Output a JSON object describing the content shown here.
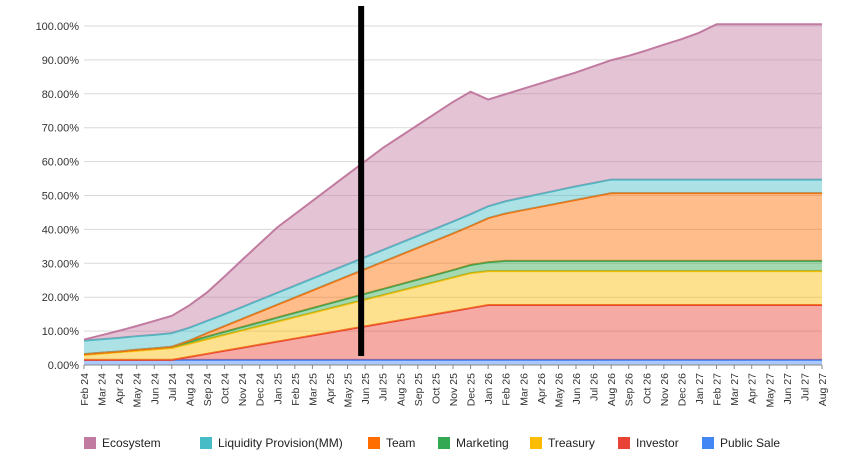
{
  "chart_data": {
    "type": "area",
    "stacked": true,
    "x": [
      "Feb 24",
      "Mar 24",
      "Apr 24",
      "May 24",
      "Jun 24",
      "Jul 24",
      "Aug 24",
      "Sep 24",
      "Oct 24",
      "Nov 24",
      "Dec 24",
      "Jan 25",
      "Feb 25",
      "Mar 25",
      "Apr 25",
      "May 25",
      "Jun 25",
      "Jul 25",
      "Aug 25",
      "Sep 25",
      "Oct 25",
      "Nov 25",
      "Dec 25",
      "Jan 26",
      "Feb 26",
      "Mar 26",
      "Apr 26",
      "May 26",
      "Jun 26",
      "Jul 26",
      "Aug 26",
      "Sep 26",
      "Oct 26",
      "Nov 26",
      "Dec 26",
      "Jan 27",
      "Feb 27",
      "Mar 27",
      "Apr 27",
      "May 27",
      "Jun 27",
      "Jul 27",
      "Aug 27"
    ],
    "ylim": [
      0,
      100
    ],
    "yticks": [
      "0.00%",
      "10.00%",
      "20.00%",
      "30.00%",
      "40.00%",
      "50.00%",
      "60.00%",
      "70.00%",
      "80.00%",
      "90.00%",
      "100.00%"
    ],
    "grid": true,
    "legend_position": "bottom",
    "marker_line": {
      "x": "Jun 25",
      "color": "#000000"
    },
    "series": [
      {
        "name": "Public Sale",
        "color": "#4285f4",
        "values": [
          1.5,
          1.5,
          1.5,
          1.5,
          1.5,
          1.5,
          1.5,
          1.5,
          1.5,
          1.5,
          1.5,
          1.5,
          1.5,
          1.5,
          1.5,
          1.5,
          1.5,
          1.5,
          1.5,
          1.5,
          1.5,
          1.5,
          1.5,
          1.5,
          1.5,
          1.5,
          1.5,
          1.5,
          1.5,
          1.5,
          1.5,
          1.5,
          1.5,
          1.5,
          1.5,
          1.5,
          1.5,
          1.5,
          1.5,
          1.5,
          1.5,
          1.5,
          1.5
        ]
      },
      {
        "name": "Investor",
        "color": "#e84335",
        "values": [
          0,
          0,
          0,
          0,
          0,
          0,
          0.9,
          1.8,
          2.7,
          3.6,
          4.5,
          5.4,
          6.3,
          7.2,
          8.1,
          9.0,
          9.9,
          10.8,
          11.7,
          12.6,
          13.5,
          14.4,
          15.3,
          16.2,
          16.2,
          16.2,
          16.2,
          16.2,
          16.2,
          16.2,
          16.2,
          16.2,
          16.2,
          16.2,
          16.2,
          16.2,
          16.2,
          16.2,
          16.2,
          16.2,
          16.2,
          16.2,
          16.2
        ]
      },
      {
        "name": "Treasury",
        "color": "#fbbc04",
        "values": [
          1.5,
          1.9,
          2.3,
          2.7,
          3.1,
          3.5,
          3.9,
          4.3,
          4.7,
          5.1,
          5.5,
          5.9,
          6.3,
          6.7,
          7.1,
          7.5,
          7.9,
          8.3,
          8.7,
          9.1,
          9.5,
          9.9,
          10.3,
          10.0,
          10.0,
          10.0,
          10.0,
          10.0,
          10.0,
          10.0,
          10.0,
          10.0,
          10.0,
          10.0,
          10.0,
          10.0,
          10.0,
          10.0,
          10.0,
          10.0,
          10.0,
          10.0,
          10.0
        ]
      },
      {
        "name": "Marketing",
        "color": "#34a853",
        "values": [
          0.2,
          0.2,
          0.2,
          0.3,
          0.3,
          0.4,
          0.6,
          0.8,
          0.9,
          1.0,
          1.1,
          1.2,
          1.3,
          1.4,
          1.5,
          1.6,
          1.7,
          1.8,
          1.9,
          2.0,
          2.1,
          2.2,
          2.4,
          2.6,
          3.0,
          3.0,
          3.0,
          3.0,
          3.0,
          3.0,
          3.0,
          3.0,
          3.0,
          3.0,
          3.0,
          3.0,
          3.0,
          3.0,
          3.0,
          3.0,
          3.0,
          3.0,
          3.0
        ]
      },
      {
        "name": "Team",
        "color": "#ff6d01",
        "values": [
          0,
          0,
          0,
          0,
          0,
          0,
          0.3,
          1.0,
          1.7,
          2.4,
          3.1,
          3.8,
          4.5,
          5.2,
          5.9,
          6.6,
          7.3,
          8.0,
          8.7,
          9.4,
          10.1,
          10.8,
          11.5,
          13.0,
          14.0,
          15.0,
          16.0,
          17.0,
          18.0,
          19.0,
          20.0,
          20.0,
          20.0,
          20.0,
          20.0,
          20.0,
          20.0,
          20.0,
          20.0,
          20.0,
          20.0,
          20.0,
          20.0
        ]
      },
      {
        "name": "Liquidity Provision(MM)",
        "color": "#46bdc6",
        "values": [
          4,
          4,
          4,
          4,
          4,
          4,
          3.8,
          3.6,
          3.5,
          3.5,
          3.5,
          3.5,
          3.5,
          3.5,
          3.5,
          3.5,
          3.5,
          3.5,
          3.5,
          3.5,
          3.5,
          3.5,
          3.5,
          3.5,
          3.6,
          3.7,
          3.8,
          3.9,
          4.0,
          4.0,
          4.0,
          4.0,
          4.0,
          4.0,
          4.0,
          4.0,
          4.0,
          4.0,
          4.0,
          4.0,
          4.0,
          4.0,
          4.0
        ]
      },
      {
        "name": "Ecosystem",
        "color": "#c27ba0",
        "values": [
          0.3,
          1.2,
          2.1,
          3.0,
          4.1,
          5.1,
          6.6,
          8.4,
          11.1,
          13.9,
          16.6,
          19.3,
          21.1,
          22.9,
          24.7,
          26.5,
          28.3,
          30.1,
          31.4,
          32.7,
          34.0,
          35.3,
          36.1,
          31.5,
          31.6,
          32.1,
          32.6,
          33.1,
          33.6,
          34.4,
          35.2,
          36.5,
          38.1,
          39.8,
          41.4,
          43.3,
          45.8,
          45.8,
          45.8,
          45.8,
          45.8,
          45.8,
          45.8
        ]
      }
    ],
    "legend_order": [
      "Ecosystem",
      "Liquidity Provision(MM)",
      "Team",
      "Marketing",
      "Treasury",
      "Investor",
      "Public Sale"
    ]
  }
}
